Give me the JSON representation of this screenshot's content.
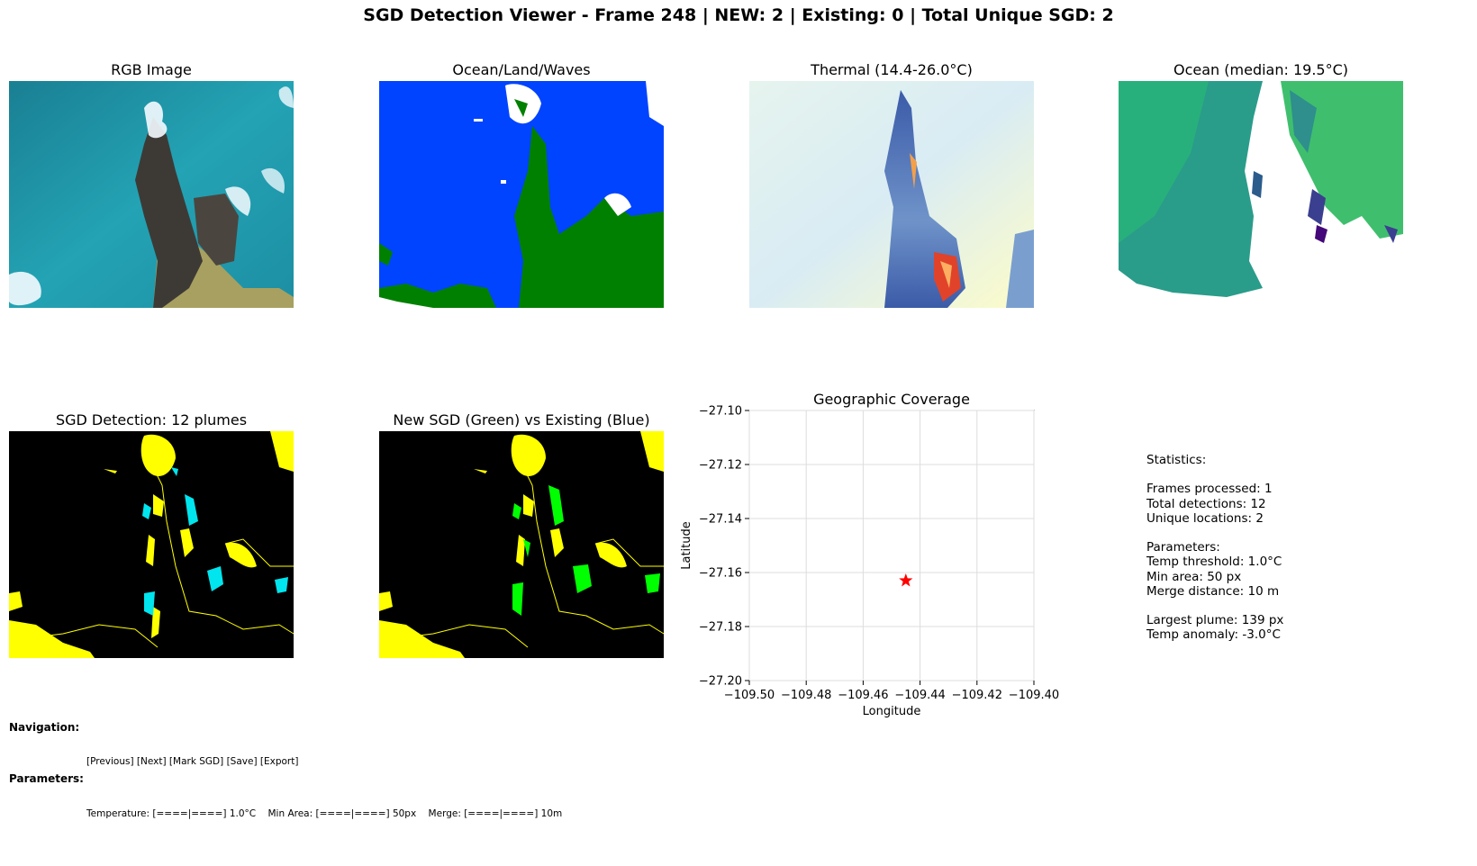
{
  "window": {
    "title": "SGD Detection Viewer - Frame 248 | NEW: 2 | Existing: 0 | Total Unique SGD: 2"
  },
  "panels": {
    "rgb": {
      "title": "RGB Image"
    },
    "classification": {
      "title": "Ocean/Land/Waves"
    },
    "thermal": {
      "title": "Thermal (14.4-26.0°C)"
    },
    "ocean": {
      "title": "Ocean (median: 19.5°C)"
    },
    "detection": {
      "title": "SGD Detection: 12 plumes"
    },
    "new_vs_existing": {
      "title": "New SGD (Green) vs Existing (Blue)"
    },
    "coverage": {
      "title": "Geographic Coverage"
    }
  },
  "colors": {
    "ocean_class": "#0044ff",
    "land_class": "#008000",
    "wave_class": "#ffffff",
    "plume_outline": "#ffff00",
    "existing_sgd": "#00e5ee",
    "new_sgd": "#00ff00",
    "marker": "#ff0000"
  },
  "chart_data": {
    "type": "scatter",
    "title": "Geographic Coverage",
    "xlabel": "Longitude",
    "ylabel": "Latitude",
    "xlim": [
      -109.5,
      -109.4
    ],
    "ylim": [
      -27.2,
      -27.1
    ],
    "xticks": [
      "−109.50",
      "−109.48",
      "−109.46",
      "−109.44",
      "−109.42",
      "−109.40"
    ],
    "xtick_values": [
      -109.5,
      -109.48,
      -109.46,
      -109.44,
      -109.42,
      -109.4
    ],
    "yticks": [
      "−27.10",
      "−27.12",
      "−27.14",
      "−27.16",
      "−27.18",
      "−27.20"
    ],
    "ytick_values": [
      -27.1,
      -27.12,
      -27.14,
      -27.16,
      -27.18,
      -27.2
    ],
    "grid": true,
    "points": [
      {
        "x": -109.445,
        "y": -27.163,
        "marker": "star",
        "color": "#ff0000"
      }
    ]
  },
  "stats": {
    "text": "Statistics:\n\nFrames processed: 1\nTotal detections: 12\nUnique locations: 2\n\nParameters:\nTemp threshold: 1.0°C\nMin area: 50 px\nMerge distance: 10 m\n\nLargest plume: 139 px\nTemp anomaly: -3.0°C"
  },
  "controls": {
    "navigation_label": "Navigation:",
    "buttons": {
      "previous": "[Previous]",
      "next": "[Next]",
      "mark": "[Mark SGD]",
      "save": "[Save]",
      "export": "[Export]"
    },
    "parameters_label": "Parameters:",
    "temperature_slider": "Temperature: [====|====] 1.0°C",
    "min_area_slider": "Min Area: [====|====] 50px",
    "merge_slider": "Merge: [====|====] 10m"
  }
}
